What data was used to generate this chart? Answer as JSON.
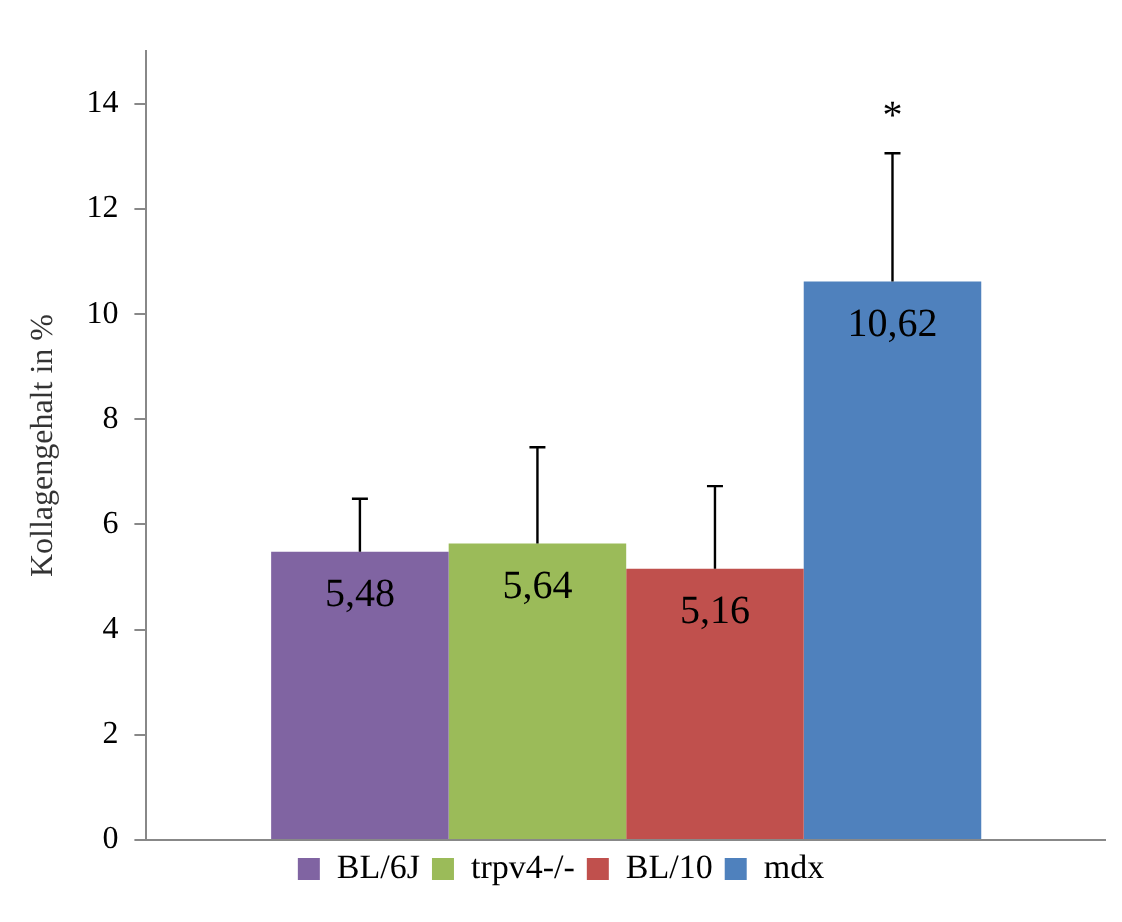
{
  "chart_data": {
    "type": "bar",
    "ylabel": "Kollagengehalt in %",
    "categories": [
      null
    ],
    "series": [
      {
        "name": "BL/6J",
        "color": "#8064a2",
        "values": [
          5.48
        ],
        "errors": [
          [
            5.48,
            6.49
          ]
        ],
        "value_labels": [
          "5,48"
        ]
      },
      {
        "name": "trpv4-/-",
        "color": "#9bbb59",
        "values": [
          5.64
        ],
        "errors": [
          [
            5.64,
            7.47
          ]
        ],
        "value_labels": [
          "5,64"
        ]
      },
      {
        "name": "BL/10",
        "color": "#c0504d",
        "values": [
          5.16
        ],
        "errors": [
          [
            5.16,
            6.73
          ]
        ],
        "value_labels": [
          "5,16"
        ]
      },
      {
        "name": "mdx",
        "color": "#4f81bd",
        "values": [
          10.62
        ],
        "errors": [
          [
            10.62,
            13.06
          ]
        ],
        "value_labels": [
          "10,62"
        ]
      }
    ],
    "annotations": [
      "*"
    ],
    "ylim": [
      0,
      15
    ],
    "yticks": [
      0,
      2,
      4,
      6,
      8,
      10,
      12,
      14
    ],
    "grid": false,
    "legend": "bottom"
  }
}
